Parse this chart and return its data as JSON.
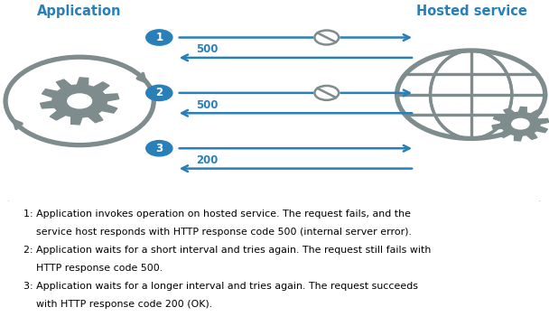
{
  "title_app": "Application",
  "title_hosted": "Hosted service",
  "title_color": "#2980B9",
  "arrow_color": "#2980B9",
  "bg_color": "#FFFFFF",
  "gear_color": "#7F8C8D",
  "rows": [
    {
      "num": "1",
      "label_back": "500",
      "has_block": true
    },
    {
      "num": "2",
      "label_back": "500",
      "has_block": true
    },
    {
      "num": "3",
      "label_back": "200",
      "has_block": false
    }
  ],
  "legend_lines": [
    [
      "1: Application invokes operation on hosted service. The request fails, and the"
    ],
    [
      "    service host responds with HTTP response code 500 (internal server error)."
    ],
    [
      "2: Application waits for a short interval and tries again. The request still fails with"
    ],
    [
      "    HTTP response code 500."
    ],
    [
      "3: Application waits for a longer interval and tries again. The request succeeds"
    ],
    [
      "    with HTTP response code 200 (OK)."
    ]
  ],
  "figsize": [
    6.08,
    3.61
  ],
  "dpi": 100
}
